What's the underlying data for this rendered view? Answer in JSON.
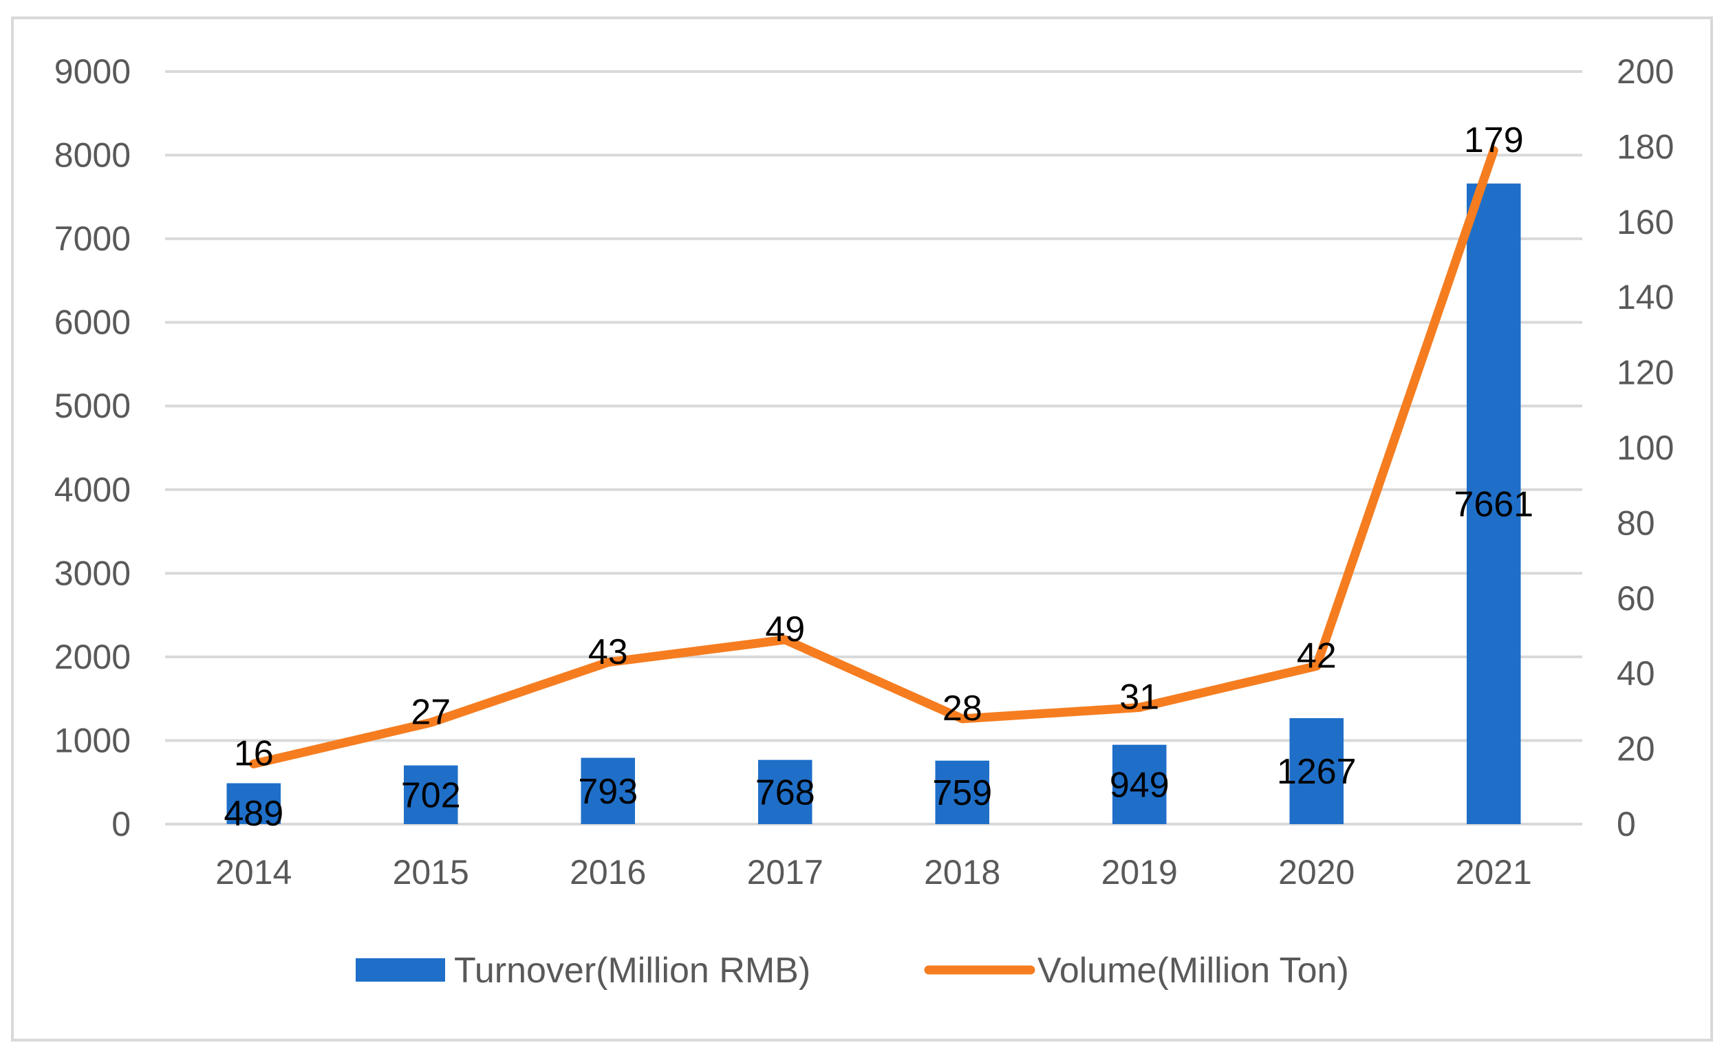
{
  "chart_data": {
    "type": "bar+line",
    "categories": [
      "2014",
      "2015",
      "2016",
      "2017",
      "2018",
      "2019",
      "2020",
      "2021"
    ],
    "series": [
      {
        "name": "Turnover(Million RMB)",
        "type": "bar",
        "axis": "left",
        "color": "#1f6fc8",
        "values": [
          489,
          702,
          793,
          768,
          759,
          949,
          1267,
          7661
        ]
      },
      {
        "name": "Volume(Million Ton)",
        "type": "line",
        "axis": "right",
        "color": "#f57d20",
        "values": [
          16,
          27,
          43,
          49,
          28,
          31,
          42,
          179
        ]
      }
    ],
    "y_left": {
      "min": 0,
      "max": 9000,
      "ticks": [
        "0",
        "1000",
        "2000",
        "3000",
        "4000",
        "5000",
        "6000",
        "7000",
        "8000",
        "9000"
      ]
    },
    "y_right": {
      "min": 0,
      "max": 200,
      "ticks": [
        "0",
        "20",
        "40",
        "60",
        "80",
        "100",
        "120",
        "140",
        "160",
        "180",
        "200"
      ]
    },
    "grid": true,
    "legend": "bottom"
  }
}
